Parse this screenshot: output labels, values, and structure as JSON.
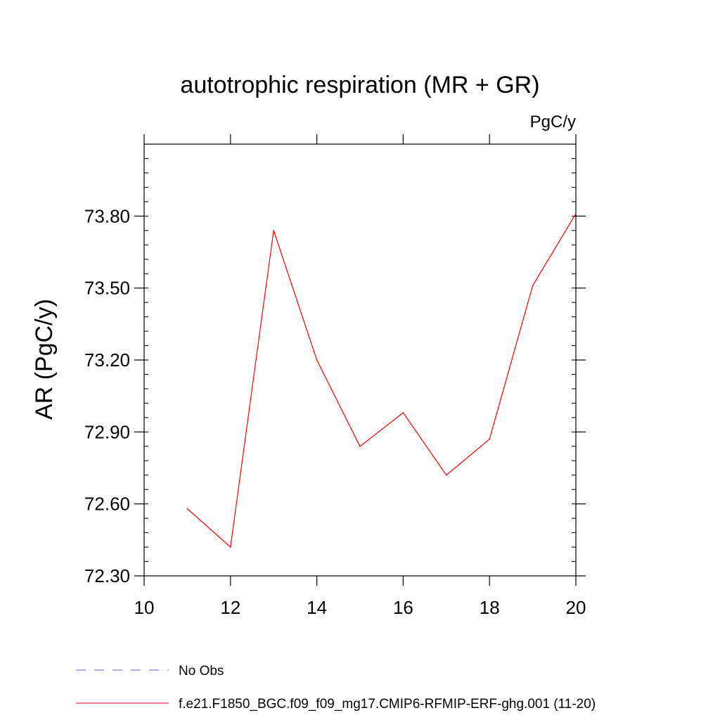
{
  "chart_data": {
    "type": "line",
    "title": "autotrophic respiration (MR + GR)",
    "units_label": "PgC/y",
    "ylabel": "AR  (PgC/y)",
    "xlabel": "",
    "xlim": [
      10,
      20
    ],
    "ylim": [
      72.3,
      74.1
    ],
    "x_ticks": [
      "10",
      "12",
      "14",
      "16",
      "18",
      "20"
    ],
    "y_ticks": [
      "72.30",
      "72.60",
      "72.90",
      "73.20",
      "73.50",
      "73.80"
    ],
    "grid": false,
    "legend_position": "bottom-left",
    "series": [
      {
        "name": "f.e21.F1850_BGC.f09_f09_mg17.CMIP6-RFMIP-ERF-ghg.001 (11-20)",
        "color": "#ff0000",
        "style": "solid",
        "x": [
          11,
          12,
          13,
          14,
          15,
          16,
          17,
          18,
          19,
          20
        ],
        "y": [
          72.58,
          72.42,
          73.74,
          73.2,
          72.84,
          72.98,
          72.72,
          72.87,
          73.51,
          73.81
        ]
      }
    ],
    "legend": [
      {
        "label": "No Obs",
        "color": "#6a5acd",
        "style": "dashed"
      },
      {
        "label": "f.e21.F1850_BGC.f09_f09_mg17.CMIP6-RFMIP-ERF-ghg.001 (11-20)",
        "color": "#ff0000",
        "style": "solid"
      }
    ]
  }
}
